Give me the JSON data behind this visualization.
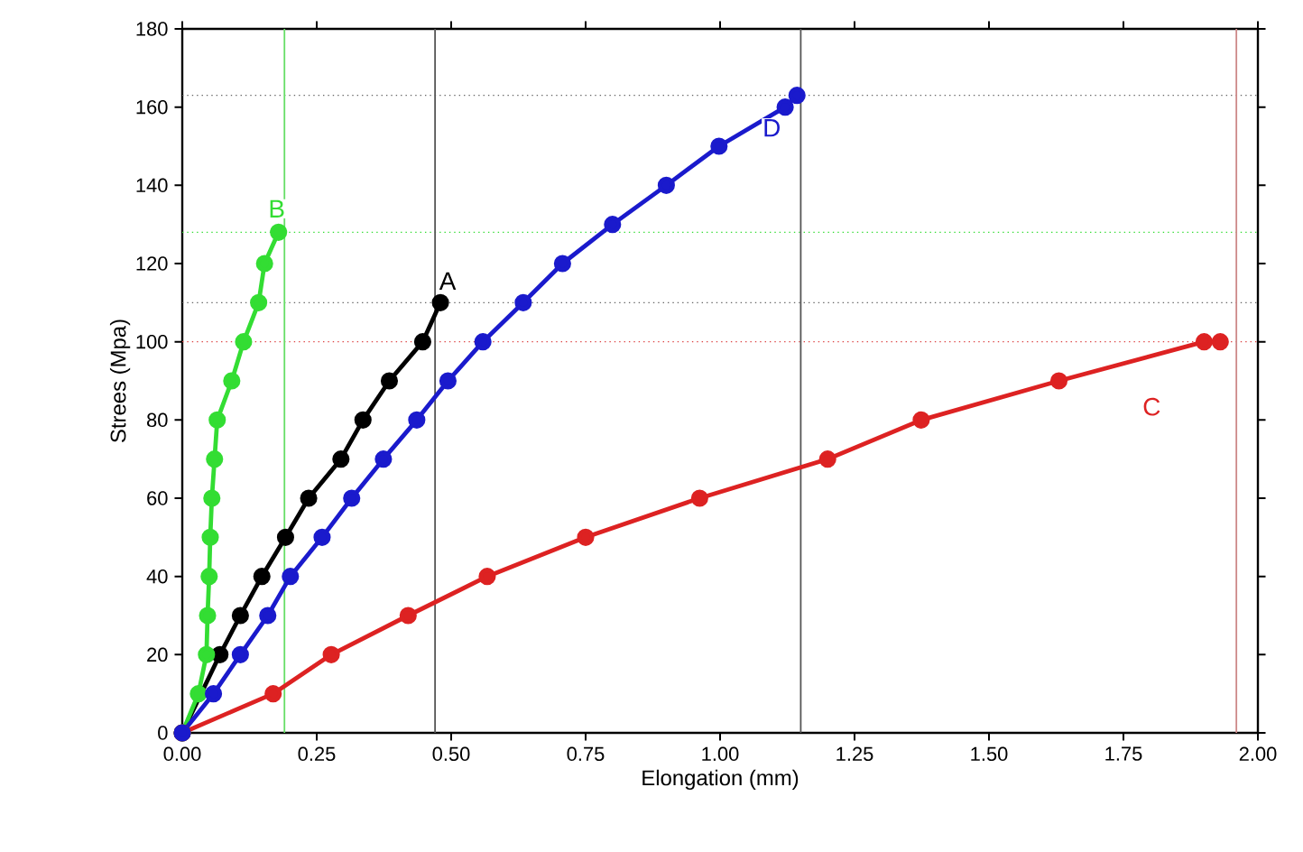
{
  "chart_data": {
    "type": "line",
    "xlabel": "Elongation (mm)",
    "ylabel": "Strees (Mpa)",
    "xlim": [
      0,
      2
    ],
    "ylim": [
      0,
      180
    ],
    "xticks": [
      {
        "value": 0,
        "label": "0.00"
      },
      {
        "value": 0.25,
        "label": "0.25"
      },
      {
        "value": 0.5,
        "label": "0.50"
      },
      {
        "value": 0.75,
        "label": "0.75"
      },
      {
        "value": 1,
        "label": "1.00"
      },
      {
        "value": 1.25,
        "label": "1.25"
      },
      {
        "value": 1.5,
        "label": "1.50"
      },
      {
        "value": 1.75,
        "label": "1.75"
      },
      {
        "value": 2,
        "label": "2.00"
      }
    ],
    "yticks": [
      0,
      20,
      40,
      60,
      80,
      100,
      120,
      140,
      160,
      180
    ],
    "marker": "circle",
    "grid": false,
    "legend": false,
    "series": [
      {
        "name": "A",
        "color": "#000000",
        "x": [
          0,
          0.035,
          0.07,
          0.108,
          0.148,
          0.192,
          0.235,
          0.295,
          0.336,
          0.385,
          0.447,
          0.48
        ],
        "values": [
          0,
          null,
          20,
          30,
          40,
          50,
          60,
          70,
          80,
          90,
          100,
          110
        ]
      },
      {
        "name": "B",
        "color": "#33dd33",
        "x": [
          0,
          0.03,
          0.045,
          0.047,
          0.05,
          0.052,
          0.055,
          0.06,
          0.065,
          0.092,
          0.114,
          0.142,
          0.153,
          0.179
        ],
        "values": [
          0,
          10,
          20,
          30,
          40,
          50,
          60,
          70,
          80,
          90,
          100,
          110,
          120,
          128
        ]
      },
      {
        "name": "C",
        "color": "#dd2222",
        "x": [
          0,
          0.169,
          0.277,
          0.42,
          0.567,
          0.75,
          0.962,
          1.2,
          1.374,
          1.63,
          1.9,
          1.93
        ],
        "values": [
          0,
          10,
          20,
          30,
          40,
          50,
          60,
          70,
          80,
          90,
          100,
          100
        ]
      },
      {
        "name": "D",
        "color": "#1a1acc",
        "x": [
          0,
          0.058,
          0.108,
          0.159,
          0.201,
          0.26,
          0.315,
          0.374,
          0.436,
          0.494,
          0.559,
          0.634,
          0.707,
          0.8,
          0.9,
          0.998,
          1.121,
          1.143
        ],
        "values": [
          0,
          10,
          20,
          30,
          40,
          50,
          60,
          70,
          80,
          90,
          100,
          110,
          120,
          130,
          140,
          150,
          160,
          163
        ]
      }
    ],
    "ref_lines": [
      {
        "axis": "y",
        "value": 110,
        "color": "#666666",
        "line_style": "dotted"
      },
      {
        "axis": "y",
        "value": 128,
        "color": "#33dd33",
        "line_style": "dotted"
      },
      {
        "axis": "y",
        "value": 100,
        "color": "#dd4444",
        "line_style": "dotted"
      },
      {
        "axis": "y",
        "value": 163,
        "color": "#666666",
        "line_style": "dotted"
      },
      {
        "axis": "x",
        "value": 0.47,
        "color": "#555555",
        "line_style": "solid"
      },
      {
        "axis": "x",
        "value": 0.19,
        "color": "#66dd66",
        "line_style": "solid"
      },
      {
        "axis": "x",
        "value": 1.96,
        "color": "#cc8888",
        "line_style": "solid"
      },
      {
        "axis": "x",
        "value": 1.15,
        "color": "#555555",
        "line_style": "solid"
      }
    ]
  }
}
